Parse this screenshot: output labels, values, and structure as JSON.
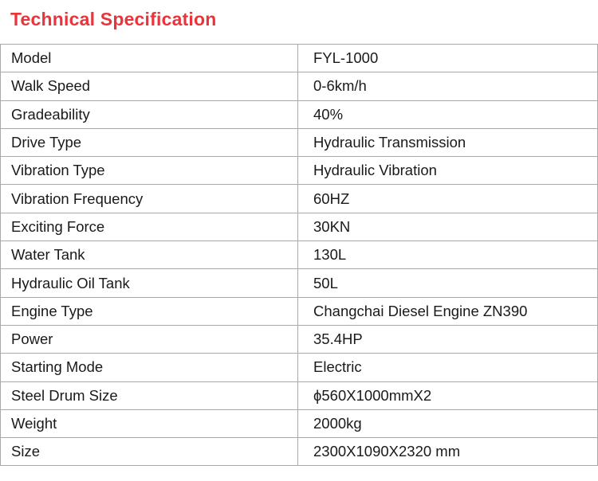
{
  "title": "Technical Specification",
  "colors": {
    "title": "#e8353b",
    "border": "#a9a9a9"
  },
  "rows": [
    {
      "label": "Model",
      "value": "FYL-1000"
    },
    {
      "label": "Walk Speed",
      "value": "0-6km/h"
    },
    {
      "label": "Gradeability",
      "value": "40%"
    },
    {
      "label": "Drive Type",
      "value": "Hydraulic Transmission"
    },
    {
      "label": "Vibration Type",
      "value": "Hydraulic Vibration"
    },
    {
      "label": "Vibration Frequency",
      "value": "60HZ"
    },
    {
      "label": "Exciting Force",
      "value": "30KN"
    },
    {
      "label": "Water Tank",
      "value": "130L"
    },
    {
      "label": "Hydraulic Oil Tank",
      "value": "50L"
    },
    {
      "label": "Engine Type",
      "value": "Changchai Diesel Engine ZN390"
    },
    {
      "label": "Power",
      "value": "35.4HP"
    },
    {
      "label": "Starting Mode",
      "value": "Electric"
    },
    {
      "label": "Steel Drum Size",
      "value": "ϕ560X1000mmX2"
    },
    {
      "label": "Weight",
      "value": "2000kg"
    },
    {
      "label": "Size",
      "value": "2300X1090X2320 mm"
    }
  ]
}
